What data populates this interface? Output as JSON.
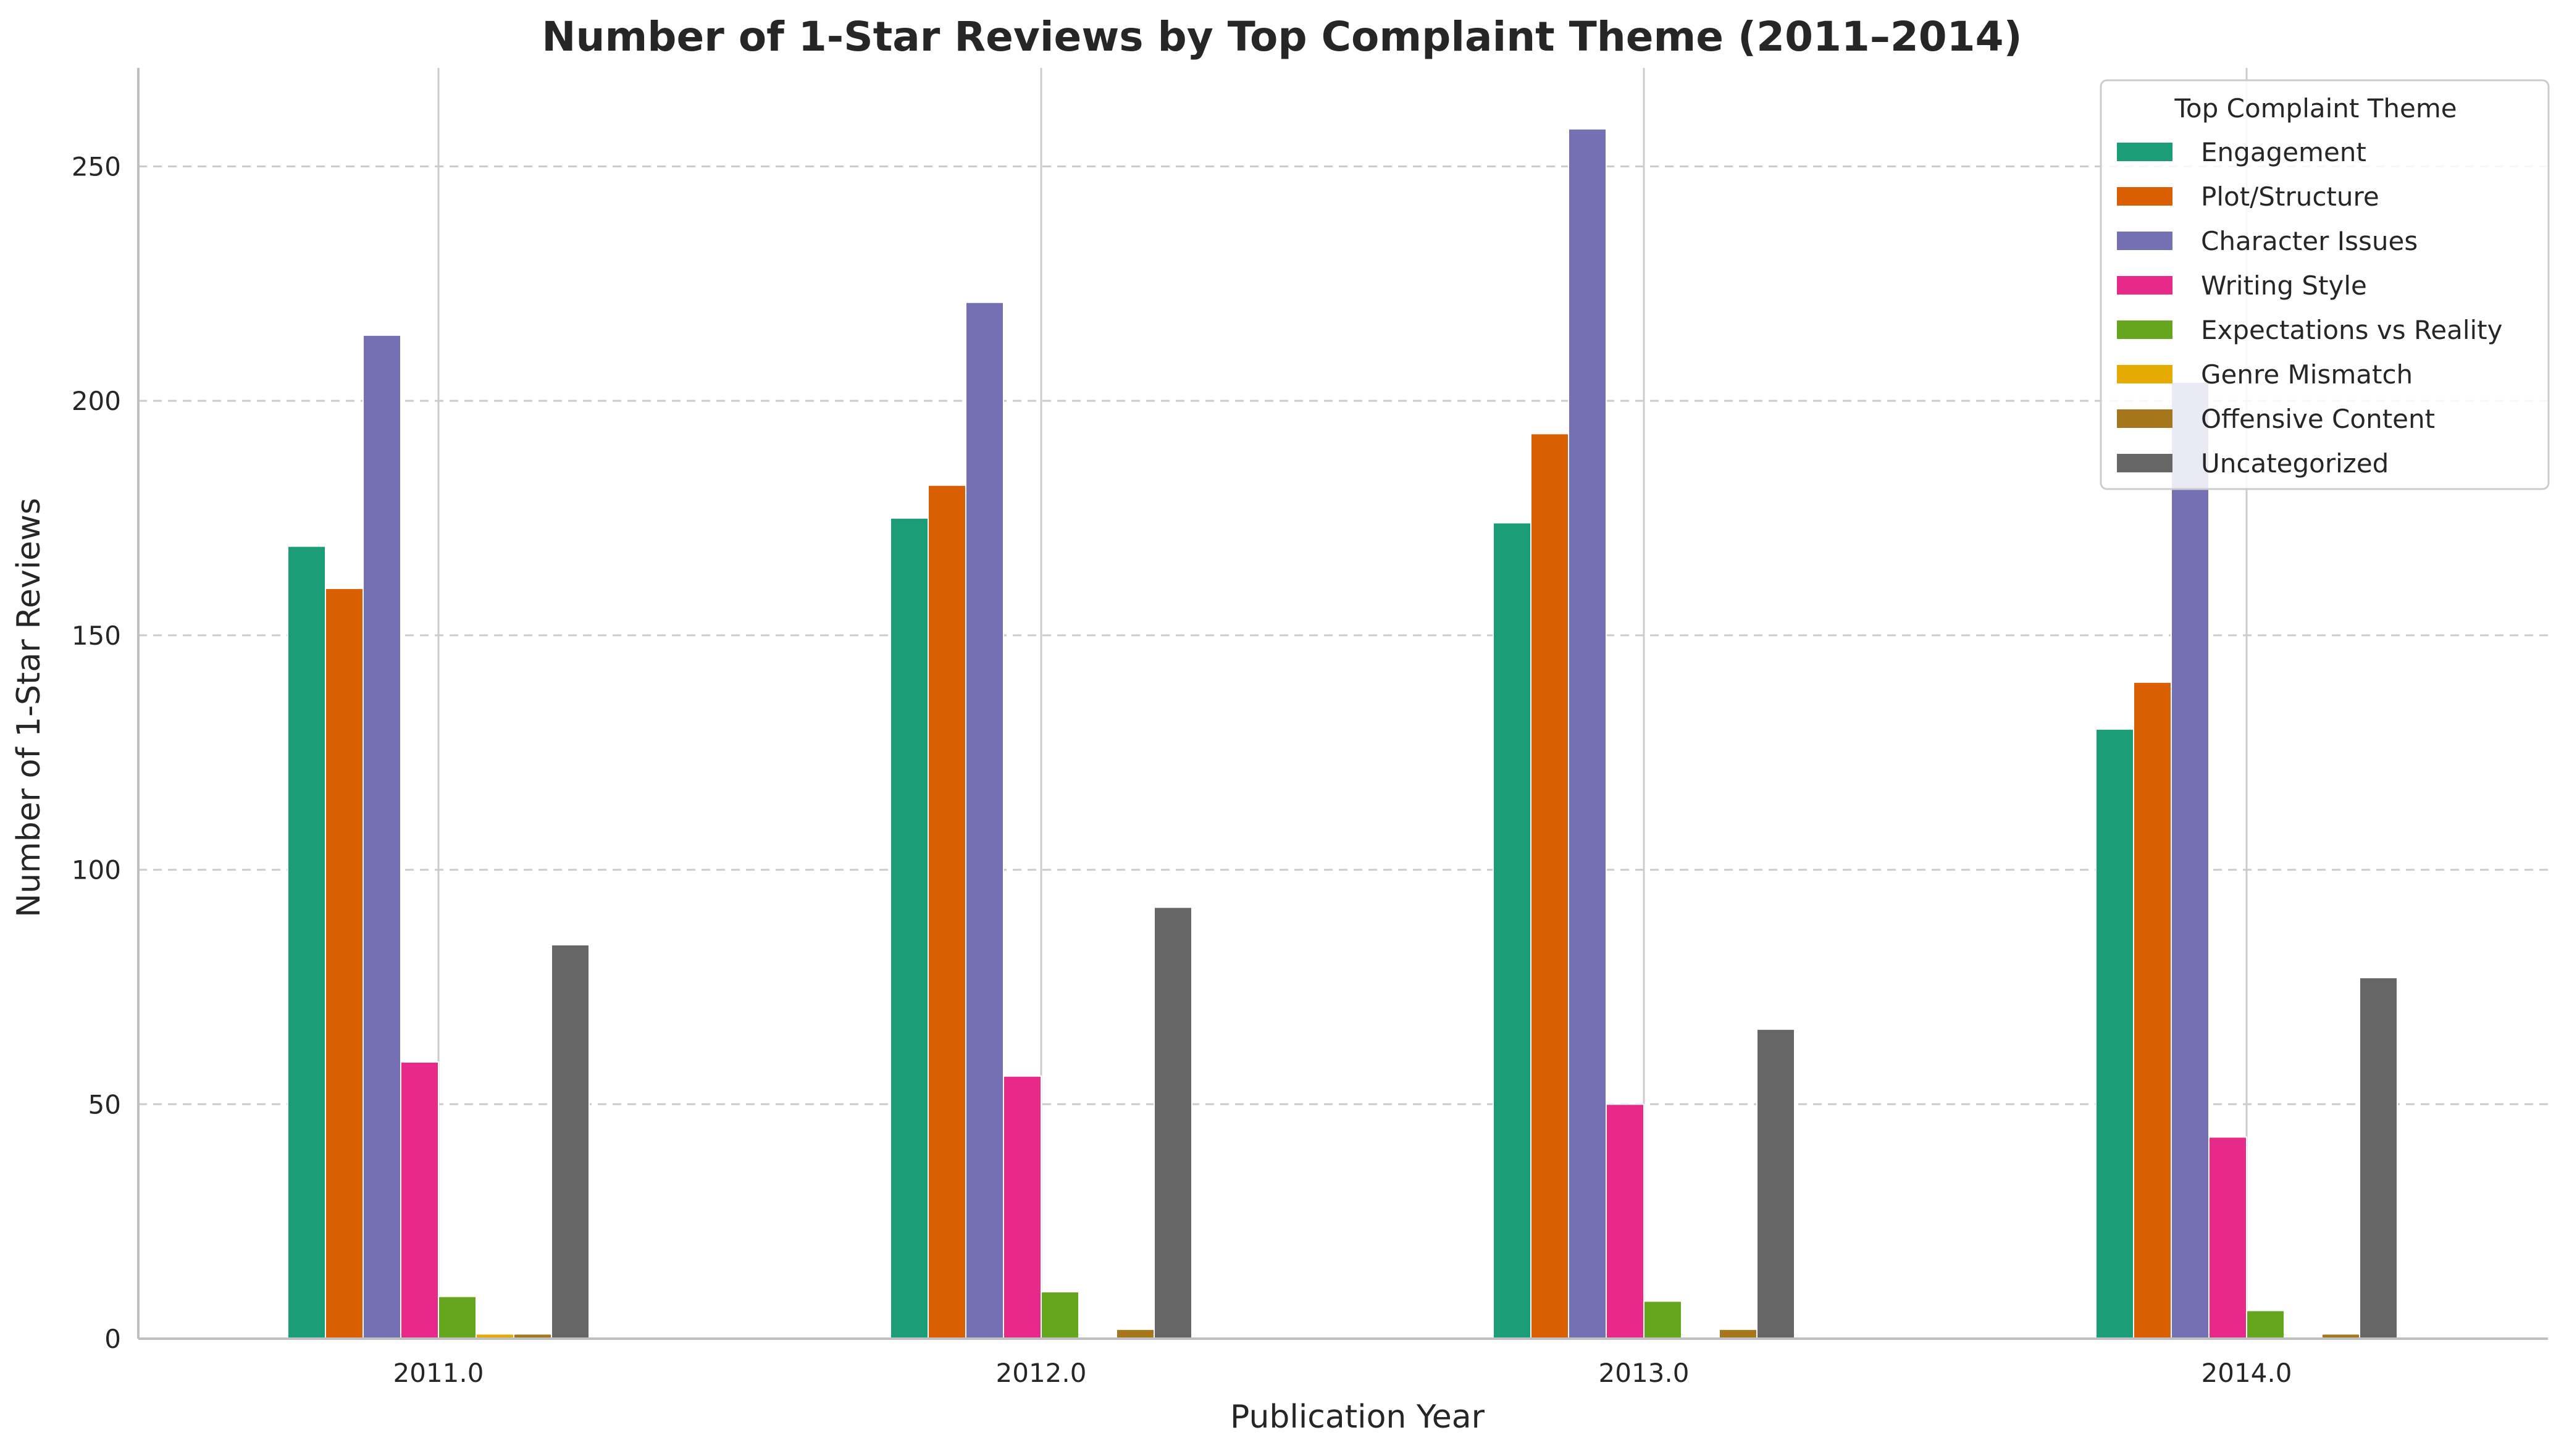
{
  "chart_data": {
    "type": "bar",
    "title": "Number of 1-Star Reviews by Top Complaint Theme (2011–2014)",
    "xlabel": "Publication Year",
    "ylabel": "Number of 1-Star Reviews",
    "categories": [
      "2011.0",
      "2012.0",
      "2013.0",
      "2014.0"
    ],
    "ylim": [
      0,
      271
    ],
    "yticks": [
      0,
      50,
      100,
      150,
      200,
      250
    ],
    "grid": "y-dashed",
    "legend": {
      "title": "Top Complaint Theme",
      "placement": "top-right"
    },
    "series": [
      {
        "name": "Engagement",
        "color": "#1b9e77",
        "values": [
          169,
          175,
          174,
          130
        ]
      },
      {
        "name": "Plot/Structure",
        "color": "#d95f02",
        "values": [
          160,
          182,
          193,
          140
        ]
      },
      {
        "name": "Character Issues",
        "color": "#7570b3",
        "values": [
          214,
          221,
          258,
          204
        ]
      },
      {
        "name": "Writing Style",
        "color": "#e7298a",
        "values": [
          59,
          56,
          50,
          43
        ]
      },
      {
        "name": "Expectations vs Reality",
        "color": "#66a61e",
        "values": [
          9,
          10,
          8,
          6
        ]
      },
      {
        "name": "Genre Mismatch",
        "color": "#e6ab02",
        "values": [
          1,
          0,
          0,
          0
        ]
      },
      {
        "name": "Offensive Content",
        "color": "#a6761d",
        "values": [
          1,
          2,
          2,
          1
        ]
      },
      {
        "name": "Uncategorized",
        "color": "#666666",
        "values": [
          84,
          92,
          66,
          77
        ]
      }
    ]
  }
}
